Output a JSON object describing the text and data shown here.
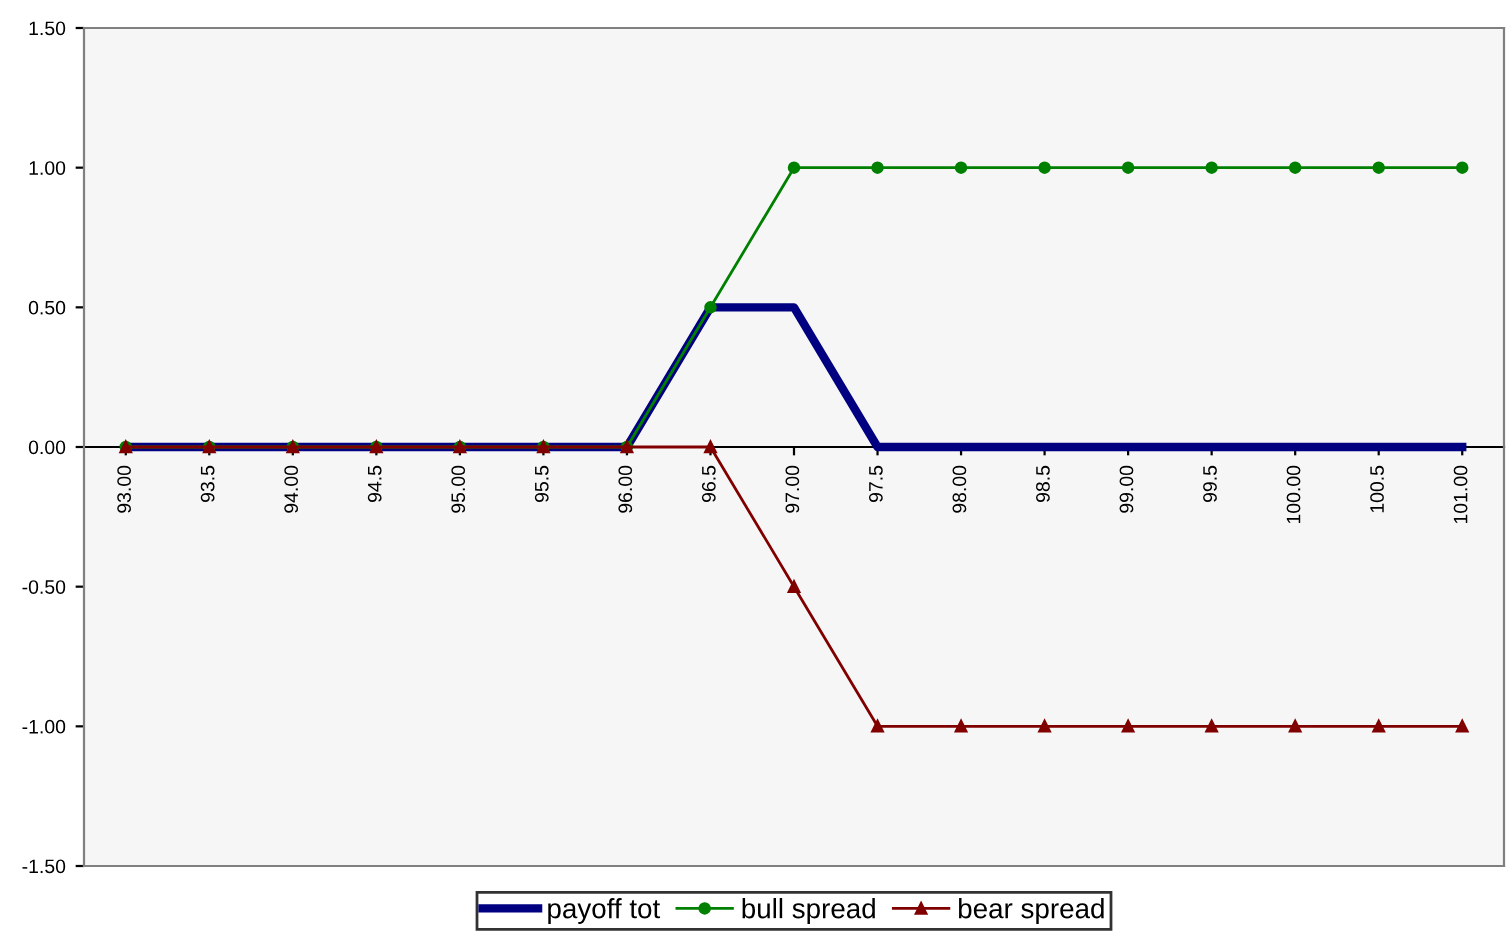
{
  "chart_data": {
    "type": "line",
    "categories": [
      "93.00",
      "93.5",
      "94.00",
      "94.5",
      "95.00",
      "95.5",
      "96.00",
      "96.5",
      "97.00",
      "97.5",
      "98.00",
      "98.5",
      "99.00",
      "99.5",
      "100.00",
      "100.5",
      "101.00"
    ],
    "series": [
      {
        "name": "payoff tot",
        "color": "#000080",
        "marker": "none",
        "values": [
          0,
          0,
          0,
          0,
          0,
          0,
          0,
          0.5,
          0.5,
          0,
          0,
          0,
          0,
          0,
          0,
          0,
          0
        ]
      },
      {
        "name": "bull spread",
        "color": "#008000",
        "marker": "circle",
        "values": [
          0,
          0,
          0,
          0,
          0,
          0,
          0,
          0.5,
          1,
          1,
          1,
          1,
          1,
          1,
          1,
          1,
          1
        ]
      },
      {
        "name": "bear spread",
        "color": "#800000",
        "marker": "triangle",
        "values": [
          0,
          0,
          0,
          0,
          0,
          0,
          0,
          0,
          -0.5,
          -1,
          -1,
          -1,
          -1,
          -1,
          -1,
          -1,
          -1
        ]
      }
    ],
    "ylim": [
      -1.5,
      1.5
    ],
    "yticks": [
      {
        "value": -1.5,
        "label": "-1.50"
      },
      {
        "value": -1,
        "label": "-1.00"
      },
      {
        "value": -0.5,
        "label": "-0.50"
      },
      {
        "value": 0,
        "label": "0.00"
      },
      {
        "value": 0.5,
        "label": "0.50"
      },
      {
        "value": 1,
        "label": "1.00"
      },
      {
        "value": 1.5,
        "label": "1.50"
      }
    ],
    "grid": false,
    "legend": "bottom"
  }
}
